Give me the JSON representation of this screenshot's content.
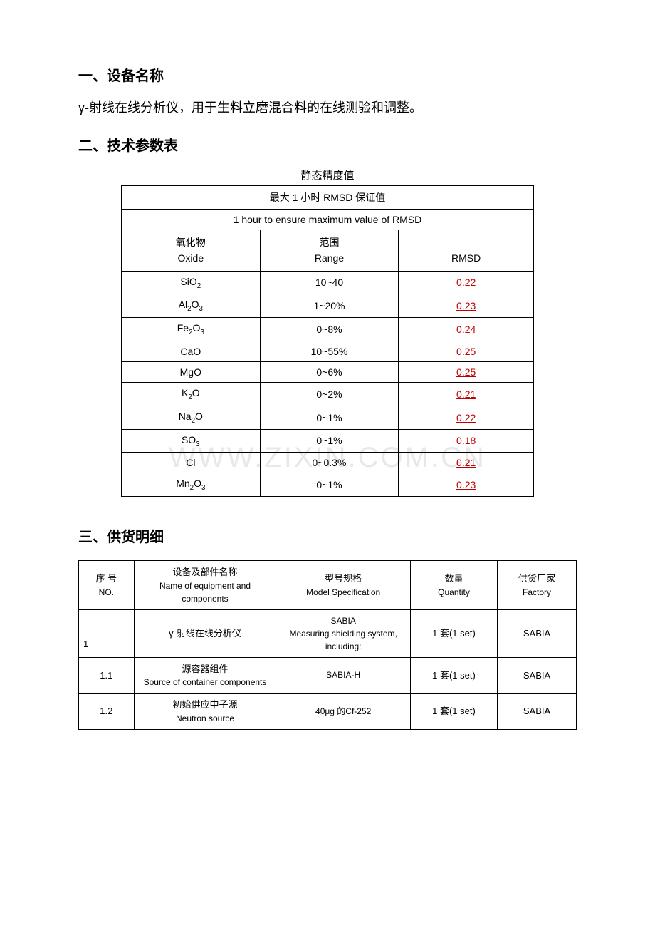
{
  "section1": {
    "heading": "一、设备名称",
    "body": "γ-射线在线分析仪，用于生料立磨混合料的在线测验和调整。"
  },
  "section2": {
    "heading": "二、技术参数表",
    "caption": "静态精度值",
    "precision_table": {
      "header_row1": "最大 1 小时 RMSD 保证值",
      "header_row2": "1 hour to ensure maximum value of RMSD",
      "col1_cn": "氧化物",
      "col1_en": "Oxide",
      "col2_cn": "范围",
      "col2_en": "Range",
      "col3": "RMSD",
      "rows": [
        {
          "oxide_html": "SiO<sub>2</sub>",
          "range": "10~40",
          "rmsd": "0.22",
          "range_red": false
        },
        {
          "oxide_html": "Al<sub>2</sub>O<sub>3</sub>",
          "range": "1~20%",
          "rmsd": "0.23",
          "range_red": false
        },
        {
          "oxide_html": "Fe<sub>2</sub>O<sub>3</sub>",
          "range": "0~8%",
          "rmsd": "0.24",
          "range_red": false
        },
        {
          "oxide_html": "CaO",
          "range": "10~55%",
          "rmsd": "0.25",
          "range_red": false
        },
        {
          "oxide_html": "MgO",
          "range": "0~6%",
          "rmsd": "0.25",
          "range_red": false
        },
        {
          "oxide_html": "K<sub>2</sub>O",
          "range": "0~2%",
          "rmsd": "0.21",
          "range_red": false
        },
        {
          "oxide_html": "Na<sub>2</sub>O",
          "range": "0~1%",
          "rmsd": "0.22",
          "range_red": false
        },
        {
          "oxide_html": "SO<sub>3</sub>",
          "range": "0~1%",
          "rmsd": "0.18",
          "range_red": true
        },
        {
          "oxide_html": "Cl",
          "range": "0~0.3%",
          "rmsd": "0.21",
          "range_red": true
        },
        {
          "oxide_html": "Mn<sub>2</sub>O<sub>3</sub>",
          "range": "0~1%",
          "rmsd": "0.23",
          "range_red": false
        }
      ]
    }
  },
  "section3": {
    "heading": "三、供货明细",
    "supply_table": {
      "headers": {
        "no_cn": "序 号",
        "no_en": "NO.",
        "name_cn": "设备及部件名称",
        "name_en": "Name of equipment and components",
        "model_cn": "型号规格",
        "model_en": "Model Specification",
        "qty_cn": "数量",
        "qty_en": "Quantity",
        "factory_cn": "供货厂家",
        "factory_en": "Factory"
      },
      "rows": [
        {
          "no": "1",
          "name_cn": "γ-射线在线分析仪",
          "name_en": "",
          "model": "SABIA\nMeasuring shielding system, including:",
          "qty": "1 套(1 set)",
          "factory": "SABIA",
          "no_left": true
        },
        {
          "no": "1.1",
          "name_cn": "源容器组件",
          "name_en": "Source of container components",
          "model": "SABIA-H",
          "qty": "1 套(1 set)",
          "factory": "SABIA",
          "no_left": false
        },
        {
          "no": "1.2",
          "name_cn": "初始供应中子源",
          "name_en": "Neutron source",
          "model": "40μg 的Cf-252",
          "qty": "1 套(1 set)",
          "factory": "SABIA",
          "no_left": false
        }
      ]
    }
  },
  "watermark": "WWW.ZIXIN.COM.CN"
}
